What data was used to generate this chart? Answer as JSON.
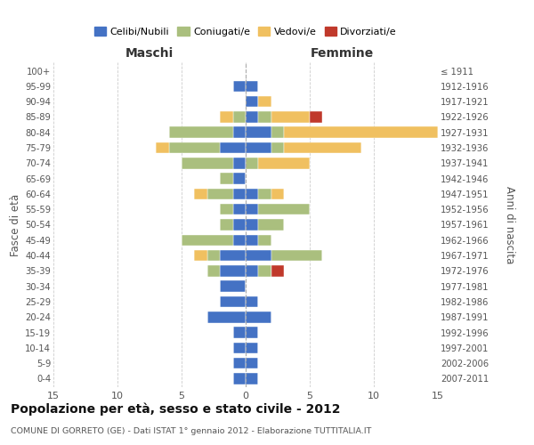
{
  "age_groups": [
    "0-4",
    "5-9",
    "10-14",
    "15-19",
    "20-24",
    "25-29",
    "30-34",
    "35-39",
    "40-44",
    "45-49",
    "50-54",
    "55-59",
    "60-64",
    "65-69",
    "70-74",
    "75-79",
    "80-84",
    "85-89",
    "90-94",
    "95-99",
    "100+"
  ],
  "birth_years": [
    "2007-2011",
    "2002-2006",
    "1997-2001",
    "1992-1996",
    "1987-1991",
    "1982-1986",
    "1977-1981",
    "1972-1976",
    "1967-1971",
    "1962-1966",
    "1957-1961",
    "1952-1956",
    "1947-1951",
    "1942-1946",
    "1937-1941",
    "1932-1936",
    "1927-1931",
    "1922-1926",
    "1917-1921",
    "1912-1916",
    "≤ 1911"
  ],
  "maschi": {
    "celibi": [
      1,
      1,
      1,
      1,
      3,
      2,
      2,
      2,
      2,
      1,
      1,
      1,
      1,
      1,
      1,
      2,
      1,
      0,
      0,
      1,
      0
    ],
    "coniugati": [
      0,
      0,
      0,
      0,
      0,
      0,
      0,
      1,
      1,
      4,
      1,
      1,
      2,
      1,
      4,
      4,
      5,
      1,
      0,
      0,
      0
    ],
    "vedovi": [
      0,
      0,
      0,
      0,
      0,
      0,
      0,
      0,
      1,
      0,
      0,
      0,
      1,
      0,
      0,
      1,
      0,
      1,
      0,
      0,
      0
    ],
    "divorziati": [
      0,
      0,
      0,
      0,
      0,
      0,
      0,
      0,
      0,
      0,
      0,
      0,
      0,
      0,
      0,
      0,
      0,
      0,
      0,
      0,
      0
    ]
  },
  "femmine": {
    "nubili": [
      1,
      1,
      1,
      1,
      2,
      1,
      0,
      1,
      2,
      1,
      1,
      1,
      1,
      0,
      0,
      2,
      2,
      1,
      1,
      1,
      0
    ],
    "coniugate": [
      0,
      0,
      0,
      0,
      0,
      0,
      0,
      1,
      4,
      1,
      2,
      4,
      1,
      0,
      1,
      1,
      1,
      1,
      0,
      0,
      0
    ],
    "vedove": [
      0,
      0,
      0,
      0,
      0,
      0,
      0,
      0,
      0,
      0,
      0,
      0,
      1,
      0,
      4,
      6,
      12,
      3,
      1,
      0,
      0
    ],
    "divorziate": [
      0,
      0,
      0,
      0,
      0,
      0,
      0,
      1,
      0,
      0,
      0,
      0,
      0,
      0,
      0,
      0,
      0,
      1,
      0,
      0,
      0
    ]
  },
  "colors": {
    "celibi_nubili": "#4472C4",
    "coniugati": "#AABF7E",
    "vedovi": "#F0C060",
    "divorziati": "#C0392B"
  },
  "title": "Popolazione per età, sesso e stato civile - 2012",
  "subtitle": "COMUNE DI GORRETO (GE) - Dati ISTAT 1° gennaio 2012 - Elaborazione TUTTITALIA.IT",
  "xlabel_left": "Maschi",
  "xlabel_right": "Femmine",
  "ylabel_left": "Fasce di età",
  "ylabel_right": "Anni di nascita",
  "xlim": 15,
  "grid_color": "#cccccc"
}
